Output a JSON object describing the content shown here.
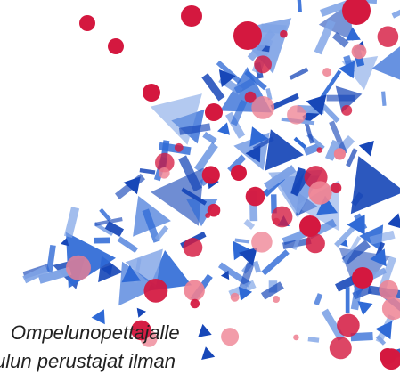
{
  "caption": {
    "line1": "Ompelunopettajalle",
    "line2": "ulun perustajat ilman"
  },
  "artwork": {
    "name": "confetti-decoration",
    "colors": {
      "blue_dark": "#1747b8",
      "blue_mid": "#2f6ad6",
      "blue_light": "#7ea3e6",
      "red": "#d4183f",
      "pink": "#ee8192",
      "white": "#ffffff"
    }
  }
}
